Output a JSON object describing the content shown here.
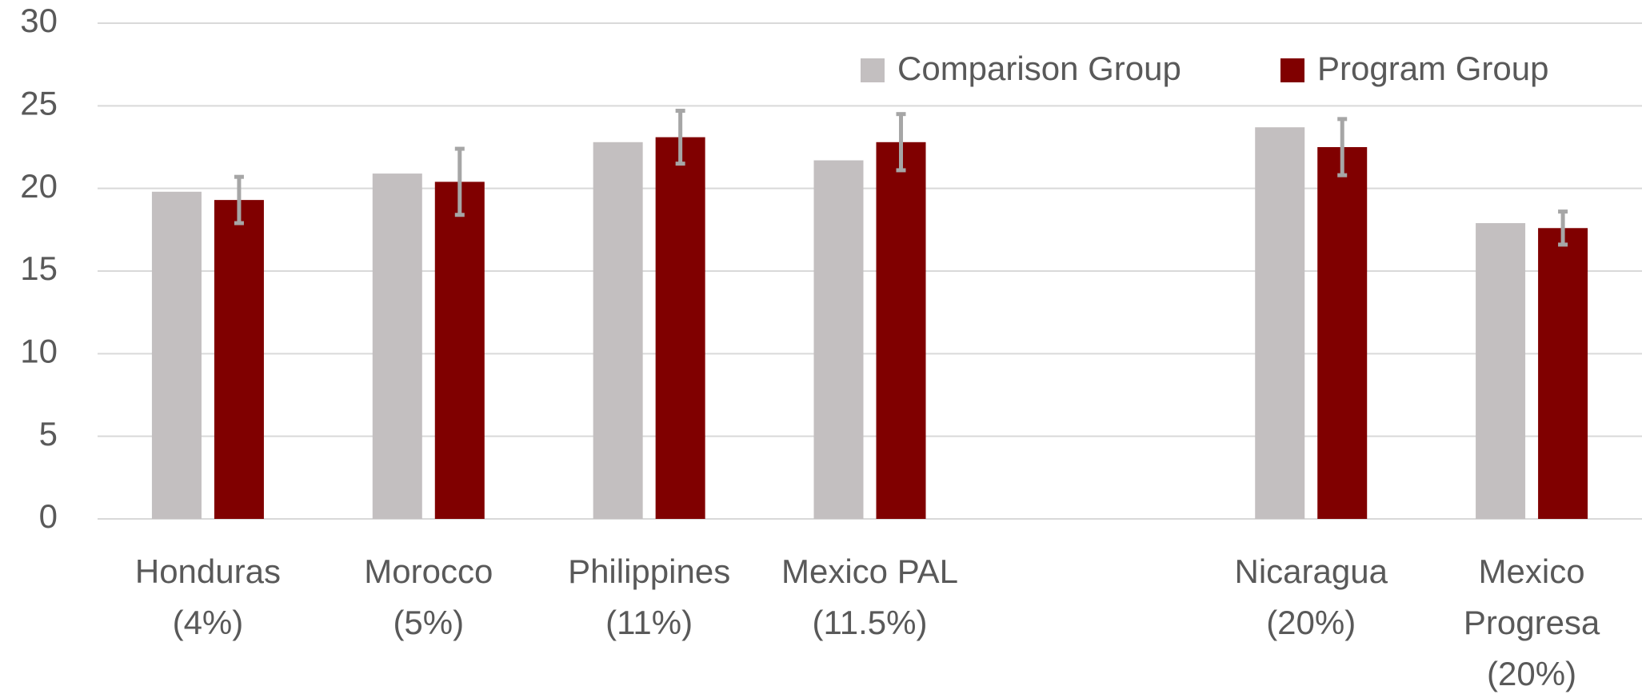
{
  "chart_data": {
    "type": "bar",
    "categories": [
      [
        "Honduras",
        "(4%)"
      ],
      [
        "Morocco",
        "(5%)"
      ],
      [
        "Philippines",
        "(11%)"
      ],
      [
        "Mexico PAL",
        "(11.5%)"
      ],
      null,
      [
        "Nicaragua",
        "(20%)"
      ],
      [
        "Mexico",
        "Progresa",
        "(20%)"
      ]
    ],
    "series": [
      {
        "name": "Comparison Group",
        "color": "#c3bfc0",
        "values": [
          19.8,
          20.9,
          22.8,
          21.7,
          null,
          23.7,
          17.9
        ]
      },
      {
        "name": "Program Group",
        "color": "#800000",
        "values": [
          19.3,
          20.4,
          23.1,
          22.8,
          null,
          22.5,
          17.6
        ],
        "errors": [
          1.4,
          2.0,
          1.6,
          1.7,
          null,
          1.7,
          1.0
        ],
        "error_color": "#a6a6a6"
      }
    ],
    "ylim": [
      0,
      30
    ],
    "yticks": [
      0,
      5,
      10,
      15,
      20,
      25,
      30
    ],
    "grid": true,
    "legend": "top-right"
  }
}
